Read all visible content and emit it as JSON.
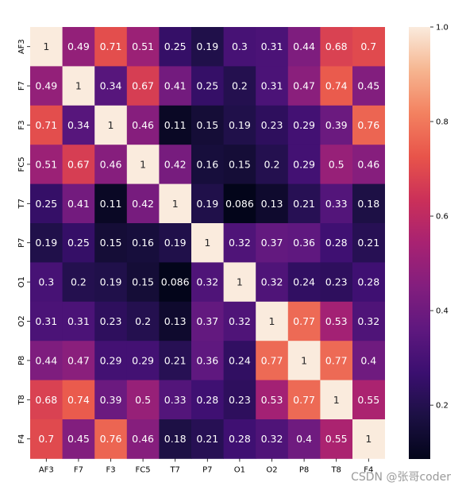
{
  "chart_data": {
    "type": "heatmap",
    "title": "",
    "xlabel": "",
    "ylabel": "",
    "x_categories": [
      "AF3",
      "F7",
      "F3",
      "FC5",
      "T7",
      "P7",
      "O1",
      "O2",
      "P8",
      "T8",
      "F4"
    ],
    "y_categories": [
      "AF3",
      "F7",
      "F3",
      "FC5",
      "T7",
      "P7",
      "O1",
      "O2",
      "P8",
      "T8",
      "F4"
    ],
    "values": [
      [
        1,
        0.49,
        0.71,
        0.51,
        0.25,
        0.19,
        0.3,
        0.31,
        0.44,
        0.68,
        0.7
      ],
      [
        0.49,
        1,
        0.34,
        0.67,
        0.41,
        0.25,
        0.2,
        0.31,
        0.47,
        0.74,
        0.45
      ],
      [
        0.71,
        0.34,
        1,
        0.46,
        0.11,
        0.15,
        0.19,
        0.23,
        0.29,
        0.39,
        0.76
      ],
      [
        0.51,
        0.67,
        0.46,
        1,
        0.42,
        0.16,
        0.15,
        0.2,
        0.29,
        0.5,
        0.46
      ],
      [
        0.25,
        0.41,
        0.11,
        0.42,
        1,
        0.19,
        0.086,
        0.13,
        0.21,
        0.33,
        0.18
      ],
      [
        0.19,
        0.25,
        0.15,
        0.16,
        0.19,
        1,
        0.32,
        0.37,
        0.36,
        0.28,
        0.21
      ],
      [
        0.3,
        0.2,
        0.19,
        0.15,
        0.086,
        0.32,
        1,
        0.32,
        0.24,
        0.23,
        0.28
      ],
      [
        0.31,
        0.31,
        0.23,
        0.2,
        0.13,
        0.37,
        0.32,
        1,
        0.77,
        0.53,
        0.32
      ],
      [
        0.44,
        0.47,
        0.29,
        0.29,
        0.21,
        0.36,
        0.24,
        0.77,
        1,
        0.77,
        0.4
      ],
      [
        0.68,
        0.74,
        0.39,
        0.5,
        0.33,
        0.28,
        0.23,
        0.53,
        0.77,
        1,
        0.55
      ],
      [
        0.7,
        0.45,
        0.76,
        0.46,
        0.18,
        0.21,
        0.28,
        0.32,
        0.4,
        0.55,
        1
      ]
    ],
    "colormap": "rocket",
    "annotations": true,
    "colorbar": {
      "range": [
        0.086,
        1.0
      ],
      "ticks": [
        0.2,
        0.4,
        0.6,
        0.8,
        1.0
      ],
      "tick_labels": [
        "0.2",
        "0.4",
        "0.6",
        "0.8",
        "1.0"
      ],
      "placement": "right"
    },
    "grid": false,
    "legend": "none"
  },
  "watermark": "CSDN @张哥coder"
}
